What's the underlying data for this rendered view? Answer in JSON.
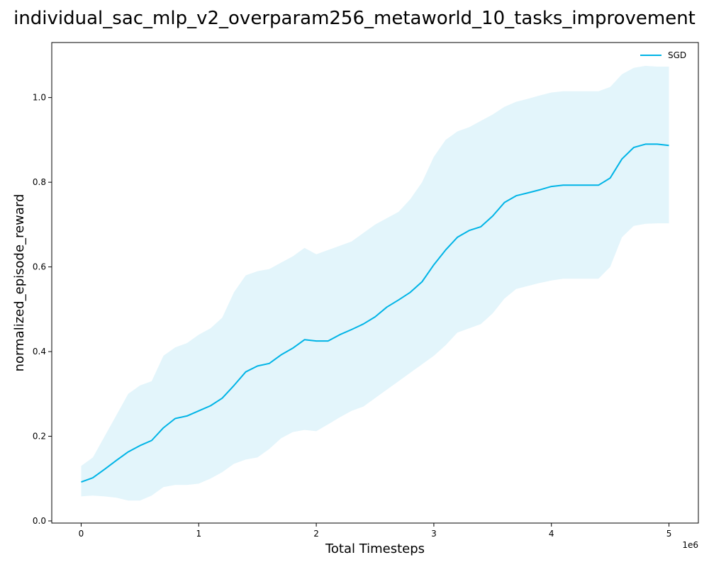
{
  "chart_data": {
    "type": "line",
    "title": "individual_sac_mlp_v2_overparam256_metaworld_10_tasks_improvement",
    "xlabel": "Total Timesteps",
    "ylabel": "normalized_episode_reward",
    "x_offset_label": "1e6",
    "xlim": [
      -0.25,
      5.25
    ],
    "ylim": [
      -0.005,
      1.13
    ],
    "x_ticks": [
      0,
      1,
      2,
      3,
      4,
      5
    ],
    "x_tick_labels": [
      "0",
      "1",
      "2",
      "3",
      "4",
      "5"
    ],
    "y_ticks": [
      0.0,
      0.2,
      0.4,
      0.6,
      0.8,
      1.0
    ],
    "y_tick_labels": [
      "0.0",
      "0.2",
      "0.4",
      "0.6",
      "0.8",
      "1.0"
    ],
    "grid": false,
    "legend_position": "top-right",
    "series": [
      {
        "name": "SGD",
        "color": "#00b4e6",
        "band_color": "#e3f5fb",
        "x": [
          0,
          0.1,
          0.2,
          0.3,
          0.4,
          0.5,
          0.6,
          0.7,
          0.8,
          0.9,
          1.0,
          1.1,
          1.2,
          1.3,
          1.4,
          1.5,
          1.6,
          1.7,
          1.8,
          1.9,
          2.0,
          2.1,
          2.2,
          2.3,
          2.4,
          2.5,
          2.6,
          2.7,
          2.8,
          2.9,
          3.0,
          3.1,
          3.2,
          3.3,
          3.4,
          3.5,
          3.6,
          3.7,
          3.8,
          3.9,
          4.0,
          4.1,
          4.2,
          4.3,
          4.4,
          4.5,
          4.6,
          4.7,
          4.8,
          4.9,
          5.0
        ],
        "mean": [
          0.092,
          0.102,
          0.122,
          0.143,
          0.163,
          0.178,
          0.19,
          0.22,
          0.242,
          0.248,
          0.26,
          0.272,
          0.29,
          0.32,
          0.352,
          0.366,
          0.372,
          0.392,
          0.408,
          0.428,
          0.425,
          0.425,
          0.44,
          0.452,
          0.465,
          0.482,
          0.505,
          0.522,
          0.54,
          0.565,
          0.605,
          0.64,
          0.67,
          0.686,
          0.695,
          0.72,
          0.752,
          0.768,
          0.775,
          0.782,
          0.79,
          0.793,
          0.793,
          0.793,
          0.793,
          0.81,
          0.855,
          0.882,
          0.89,
          0.89,
          0.887
        ],
        "upper": [
          0.13,
          0.15,
          0.2,
          0.25,
          0.3,
          0.32,
          0.33,
          0.39,
          0.41,
          0.42,
          0.44,
          0.455,
          0.48,
          0.54,
          0.58,
          0.59,
          0.595,
          0.61,
          0.625,
          0.645,
          0.63,
          0.64,
          0.65,
          0.66,
          0.68,
          0.7,
          0.715,
          0.73,
          0.76,
          0.8,
          0.86,
          0.9,
          0.92,
          0.93,
          0.945,
          0.96,
          0.978,
          0.99,
          0.997,
          1.005,
          1.012,
          1.015,
          1.015,
          1.015,
          1.015,
          1.025,
          1.055,
          1.07,
          1.075,
          1.073,
          1.073
        ],
        "lower": [
          0.058,
          0.06,
          0.058,
          0.055,
          0.048,
          0.048,
          0.06,
          0.08,
          0.085,
          0.085,
          0.088,
          0.1,
          0.115,
          0.135,
          0.145,
          0.15,
          0.17,
          0.195,
          0.21,
          0.215,
          0.212,
          0.228,
          0.245,
          0.26,
          0.27,
          0.29,
          0.31,
          0.33,
          0.35,
          0.37,
          0.39,
          0.415,
          0.445,
          0.455,
          0.465,
          0.49,
          0.525,
          0.548,
          0.555,
          0.562,
          0.568,
          0.572,
          0.572,
          0.572,
          0.572,
          0.6,
          0.67,
          0.697,
          0.702,
          0.703,
          0.703
        ]
      }
    ]
  }
}
